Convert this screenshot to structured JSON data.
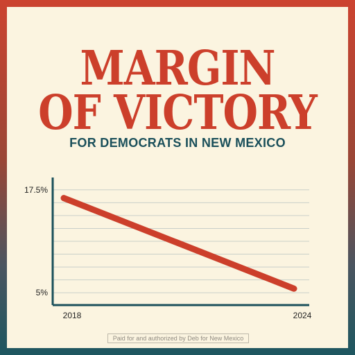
{
  "heading": {
    "line1": "MARGIN",
    "line2": "OF VICTORY",
    "subtitle": "FOR DEMOCRATS IN NEW MEXICO"
  },
  "footer": {
    "disclaimer": "Paid for and authorized by Deb for New Mexico"
  },
  "colors": {
    "title": "#cc3f2b",
    "subtitle": "#1a4f5a",
    "line": "#cc3f2b",
    "axis": "#1a4f5a",
    "grid": "#c9cfc9"
  },
  "chart_data": {
    "type": "line",
    "x": [
      2018,
      2024
    ],
    "xtick_labels": [
      "2018",
      "2024"
    ],
    "ytick_labels": [
      "17.5%",
      "5%"
    ],
    "ytick_values": [
      17.5,
      5
    ],
    "ylim": [
      3.5,
      19
    ],
    "series": [
      {
        "values": [
          16.5,
          5.5
        ]
      }
    ],
    "grid": true
  }
}
